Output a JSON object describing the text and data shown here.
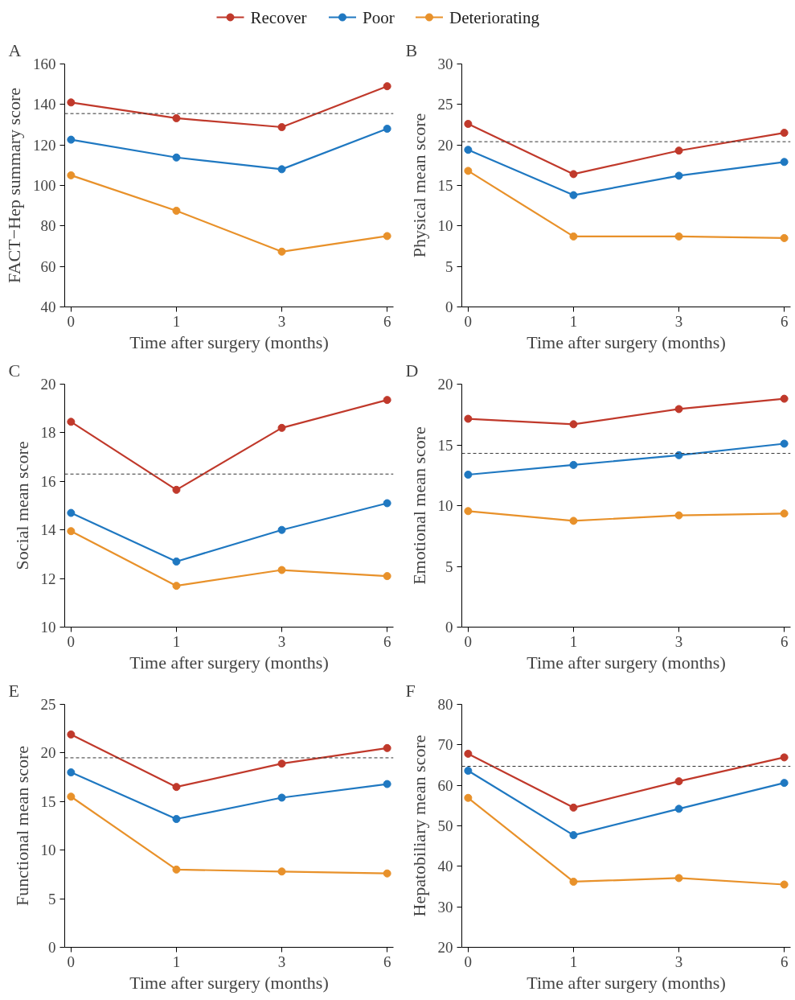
{
  "chart_data": [
    {
      "type": "line",
      "title": "A",
      "xlabel": "Time after surgery (months)",
      "ylabel": "FACT−Hep summary score",
      "categories": [
        "0",
        "1",
        "3",
        "6"
      ],
      "ylim": [
        40,
        160
      ],
      "yticks": [
        40,
        60,
        80,
        100,
        120,
        140,
        160
      ],
      "marker": "circle",
      "legend": "top",
      "grid": false,
      "series": [
        {
          "name": "Recover",
          "color": "#c0392b",
          "values": [
            141,
            133.2,
            128.8,
            149
          ]
        },
        {
          "name": "Poor",
          "color": "#1f78c1",
          "values": [
            122.6,
            113.8,
            108,
            128
          ]
        },
        {
          "name": "Deteriorating",
          "color": "#e8912a",
          "values": [
            105,
            87.5,
            67.3,
            75
          ]
        }
      ],
      "ref_lines": [
        {
          "axis": "y",
          "value": 135.5,
          "color": "#333333",
          "line_style": "dashed"
        }
      ]
    },
    {
      "type": "line",
      "title": "B",
      "xlabel": "Time after surgery (months)",
      "ylabel": "Physical mean score",
      "categories": [
        "0",
        "1",
        "3",
        "6"
      ],
      "ylim": [
        0,
        30
      ],
      "yticks": [
        0,
        5,
        10,
        15,
        20,
        25,
        30
      ],
      "marker": "circle",
      "grid": false,
      "series": [
        {
          "color": "#c0392b",
          "values": [
            22.6,
            16.4,
            19.3,
            21.5
          ]
        },
        {
          "color": "#1f78c1",
          "values": [
            19.4,
            13.8,
            16.2,
            17.9
          ]
        },
        {
          "color": "#e8912a",
          "values": [
            16.8,
            8.7,
            8.7,
            8.5
          ]
        }
      ],
      "ref_lines": [
        {
          "axis": "y",
          "value": 20.4,
          "color": "#333333",
          "line_style": "dashed"
        }
      ]
    },
    {
      "type": "line",
      "title": "C",
      "xlabel": "Time after surgery (months)",
      "ylabel": "Social mean score",
      "categories": [
        "0",
        "1",
        "3",
        "6"
      ],
      "ylim": [
        10,
        20
      ],
      "yticks": [
        10,
        12,
        14,
        16,
        18,
        20
      ],
      "marker": "circle",
      "grid": false,
      "series": [
        {
          "color": "#c0392b",
          "values": [
            18.45,
            15.65,
            18.2,
            19.35
          ]
        },
        {
          "color": "#1f78c1",
          "values": [
            14.7,
            12.7,
            14.0,
            15.1
          ]
        },
        {
          "color": "#e8912a",
          "values": [
            13.95,
            11.7,
            12.35,
            12.1
          ]
        }
      ],
      "ref_lines": [
        {
          "axis": "y",
          "value": 16.3,
          "color": "#333333",
          "line_style": "dashed"
        }
      ]
    },
    {
      "type": "line",
      "title": "D",
      "xlabel": "Time after surgery (months)",
      "ylabel": "Emotional mean score",
      "categories": [
        "0",
        "1",
        "3",
        "6"
      ],
      "ylim": [
        0,
        20
      ],
      "yticks": [
        0,
        5,
        10,
        15,
        20
      ],
      "marker": "circle",
      "grid": false,
      "series": [
        {
          "color": "#c0392b",
          "values": [
            17.15,
            16.7,
            17.95,
            18.8
          ]
        },
        {
          "color": "#1f78c1",
          "values": [
            12.55,
            13.35,
            14.15,
            15.1
          ]
        },
        {
          "color": "#e8912a",
          "values": [
            9.55,
            8.75,
            9.2,
            9.35
          ]
        }
      ],
      "ref_lines": [
        {
          "axis": "y",
          "value": 14.3,
          "color": "#333333",
          "line_style": "dashed"
        }
      ]
    },
    {
      "type": "line",
      "title": "E",
      "xlabel": "Time after surgery (months)",
      "ylabel": "Functional mean score",
      "categories": [
        "0",
        "1",
        "3",
        "6"
      ],
      "ylim": [
        0,
        25
      ],
      "yticks": [
        0,
        5,
        10,
        15,
        20,
        25
      ],
      "marker": "circle",
      "grid": false,
      "series": [
        {
          "color": "#c0392b",
          "values": [
            21.9,
            16.5,
            18.9,
            20.5
          ]
        },
        {
          "color": "#1f78c1",
          "values": [
            18.0,
            13.2,
            15.4,
            16.8
          ]
        },
        {
          "color": "#e8912a",
          "values": [
            15.5,
            8.0,
            7.8,
            7.6
          ]
        }
      ],
      "ref_lines": [
        {
          "axis": "y",
          "value": 19.5,
          "color": "#333333",
          "line_style": "dashed"
        }
      ]
    },
    {
      "type": "line",
      "title": "F",
      "xlabel": "Time after surgery (months)",
      "ylabel": "Hepatobiliary mean score",
      "categories": [
        "0",
        "1",
        "3",
        "6"
      ],
      "ylim": [
        20,
        80
      ],
      "yticks": [
        20,
        30,
        40,
        50,
        60,
        70,
        80
      ],
      "marker": "circle",
      "grid": false,
      "series": [
        {
          "color": "#c0392b",
          "values": [
            67.8,
            54.5,
            61,
            66.9
          ]
        },
        {
          "color": "#1f78c1",
          "values": [
            63.6,
            47.7,
            54.2,
            60.6
          ]
        },
        {
          "color": "#e8912a",
          "values": [
            56.9,
            36.2,
            37.1,
            35.5
          ]
        }
      ],
      "ref_lines": [
        {
          "axis": "y",
          "value": 64.7,
          "color": "#333333",
          "line_style": "dashed"
        }
      ]
    }
  ]
}
